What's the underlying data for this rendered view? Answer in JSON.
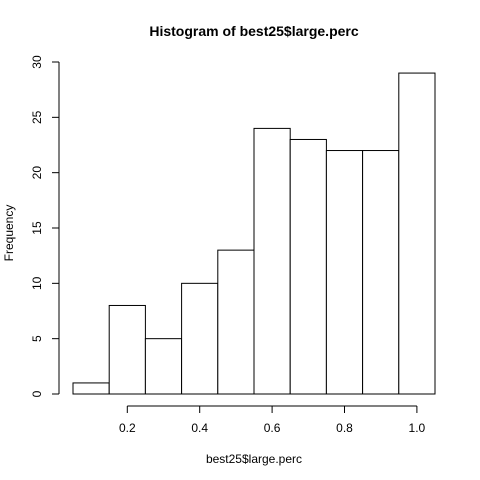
{
  "chart_data": {
    "type": "bar",
    "title": "Histogram of best25$large.perc",
    "xlabel": "best25$large.perc",
    "ylabel": "Frequency",
    "bin_edges": [
      0.05,
      0.15,
      0.25,
      0.35,
      0.45,
      0.55,
      0.65,
      0.75,
      0.85,
      0.95,
      1.05
    ],
    "values": [
      1,
      8,
      5,
      10,
      13,
      24,
      23,
      22,
      22,
      29
    ],
    "xlim": [
      0.05,
      1.05
    ],
    "ylim": [
      0,
      30
    ],
    "x_ticks": [
      0.2,
      0.4,
      0.6,
      0.8,
      1.0
    ],
    "x_tick_labels": [
      "0.2",
      "0.4",
      "0.6",
      "0.8",
      "1.0"
    ],
    "y_ticks": [
      0,
      5,
      10,
      15,
      20,
      25,
      30
    ],
    "y_tick_labels": [
      "0",
      "5",
      "10",
      "15",
      "20",
      "25",
      "30"
    ],
    "grid": false,
    "bar_fill": "#ffffff",
    "bar_stroke": "#000000"
  }
}
